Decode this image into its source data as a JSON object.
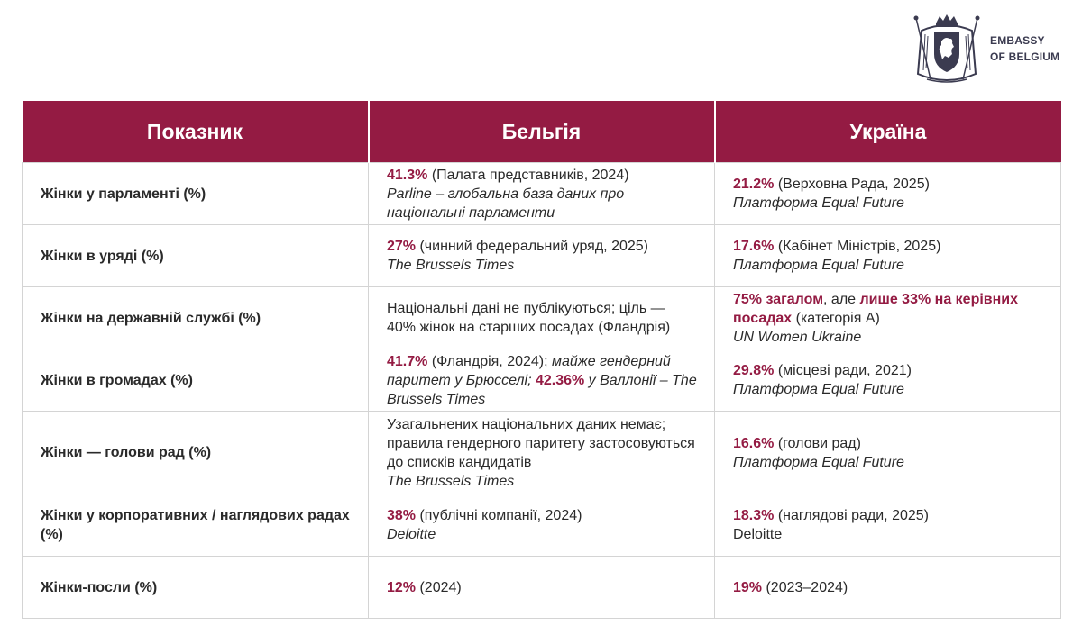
{
  "brand": {
    "line1": "EMBASSY",
    "line2": "OF BELGIUM"
  },
  "colors": {
    "accent": "#941b43",
    "header_text": "#ffffff",
    "border": "#d4d4d4",
    "logo": "#3b3b50"
  },
  "table": {
    "headers": [
      "Показник",
      "Бельгія",
      "Україна"
    ],
    "rows": [
      {
        "indicator": "Жінки у парламенті (%)",
        "be": {
          "value": "41.3%",
          "note": " (Палата представників, 2024)",
          "source": "Parline – глобальна база даних про національні парламенти"
        },
        "ua": {
          "value": "21.2%",
          "note": " (Верховна Рада, 2025)",
          "source": "Платформа Equal Future"
        }
      },
      {
        "indicator": "Жінки в уряді (%)",
        "be": {
          "value": "27%",
          "note": " (чинний федеральний уряд, 2025)",
          "source": "The Brussels Times"
        },
        "ua": {
          "value": "17.6%",
          "note": " (Кабінет Міністрів, 2025)",
          "source": "Платформа Equal Future"
        }
      },
      {
        "indicator": "Жінки на державній службі (%)",
        "be": {
          "text": "Національні дані не публікуються; ціль — 40% жінок на старших посадах (Фландрія)"
        },
        "ua": {
          "value1": "75% загалом",
          "mid": ", але ",
          "value2": "лише 33% на керівних посадах",
          "note": " (категорія А)",
          "source": "UN Women Ukraine"
        }
      },
      {
        "indicator": "Жінки в громадах (%)",
        "be": {
          "value1": "41.7%",
          "note1": " (Фландрія, 2024); ",
          "italic1": "майже гендерний паритет у Брюсселі",
          "sep": "; ",
          "value2": "42.36%",
          "italic2": " у Валлонії – The Brussels Times"
        },
        "ua": {
          "value": "29.8%",
          "note": " (місцеві ради, 2021)",
          "source": "Платформа Equal Future"
        }
      },
      {
        "indicator": "Жінки — голови рад (%)",
        "be": {
          "text": "Узагальнених національних даних немає; правила гендерного паритету застосовуються до списків кандидатів",
          "source": "The Brussels Times"
        },
        "ua": {
          "value": "16.6%",
          "note": " (голови рад)",
          "source": "Платформа Equal Future"
        }
      },
      {
        "indicator": "Жінки у корпоративних / наглядових радах (%)",
        "be": {
          "value": "38%",
          "note": " (публічні компанії, 2024)",
          "source": "Deloitte"
        },
        "ua": {
          "value": "18.3%",
          "note": " (наглядові ради, 2025)",
          "plain_source": "Deloitte"
        }
      },
      {
        "indicator": "Жінки-посли (%)",
        "be": {
          "value": "12%",
          "note": " (2024)"
        },
        "ua": {
          "value": "19%",
          "note": " (2023–2024)"
        }
      }
    ]
  }
}
